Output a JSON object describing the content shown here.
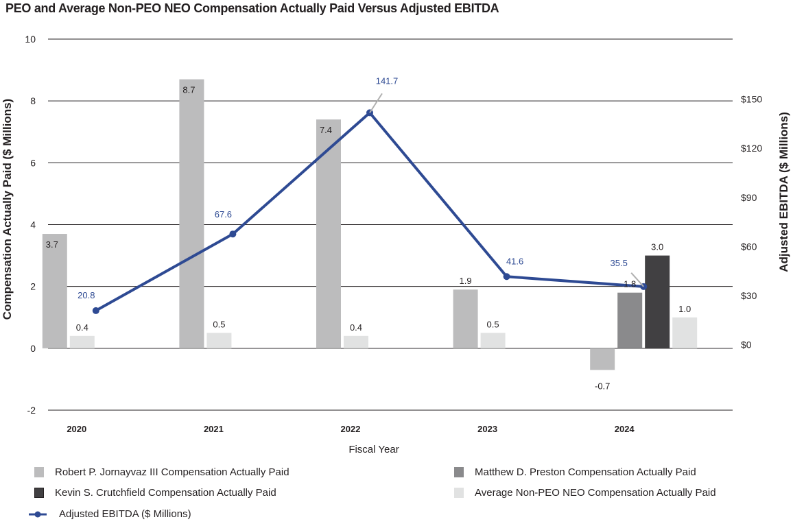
{
  "chart_data": {
    "type": "bar+line",
    "title": "PEO and Average Non-PEO NEO Compensation Actually Paid Versus Adjusted EBITDA",
    "xlabel": "Fiscal Year",
    "ylabel": "Compensation Actually Paid ($ Millions)",
    "y2label": "Adjusted EBITDA ($ Millions)",
    "categories": [
      "2020",
      "2021",
      "2022",
      "2023",
      "2024"
    ],
    "ylim": [
      -2,
      10
    ],
    "yticks": [
      -2,
      0,
      2,
      4,
      6,
      8,
      10
    ],
    "y2lim": [
      -40,
      186.7
    ],
    "y2ticks": [
      {
        "value": 0,
        "label": "$0"
      },
      {
        "value": 30,
        "label": "$30"
      },
      {
        "value": 60,
        "label": "$60"
      },
      {
        "value": 90,
        "label": "$90"
      },
      {
        "value": 120,
        "label": "$120"
      },
      {
        "value": 150,
        "label": "$150"
      }
    ],
    "grid": true,
    "series": [
      {
        "name": "Robert P. Jornayvaz III Compensation Actually Paid",
        "type": "bar",
        "color": "#bcbcbd",
        "values": [
          3.7,
          8.7,
          7.4,
          1.9,
          -0.7
        ]
      },
      {
        "name": "Matthew D. Preston Compensation Actually Paid",
        "type": "bar",
        "color": "#8a8a8c",
        "values": [
          null,
          null,
          null,
          null,
          1.8
        ]
      },
      {
        "name": "Kevin S. Crutchfield Compensation Actually Paid",
        "type": "bar",
        "color": "#414042",
        "values": [
          null,
          null,
          null,
          null,
          3.0
        ]
      },
      {
        "name": "Average Non-PEO NEO Compensation Actually Paid",
        "type": "bar",
        "color": "#e1e2e2",
        "values": [
          0.4,
          0.5,
          0.4,
          0.5,
          1.0
        ]
      },
      {
        "name": "Adjusted EBITDA ($ Millions)",
        "type": "line",
        "axis": "y2",
        "color": "#2e4a93",
        "values": [
          20.8,
          67.6,
          141.7,
          41.6,
          35.5
        ]
      }
    ],
    "legend": {
      "placement": "bottom",
      "items": [
        {
          "label": "Robert P. Jornayvaz III Compensation Actually Paid",
          "color": "#bcbcbd",
          "kind": "box"
        },
        {
          "label": "Matthew D. Preston Compensation Actually Paid",
          "color": "#8a8a8c",
          "kind": "box"
        },
        {
          "label": "Kevin S. Crutchfield Compensation Actually Paid",
          "color": "#414042",
          "kind": "box"
        },
        {
          "label": "Average Non-PEO NEO Compensation Actually Paid",
          "color": "#e1e2e2",
          "kind": "box"
        },
        {
          "label": "Adjusted EBITDA ($ Millions)",
          "color": "#2e4a93",
          "kind": "line"
        }
      ]
    }
  }
}
